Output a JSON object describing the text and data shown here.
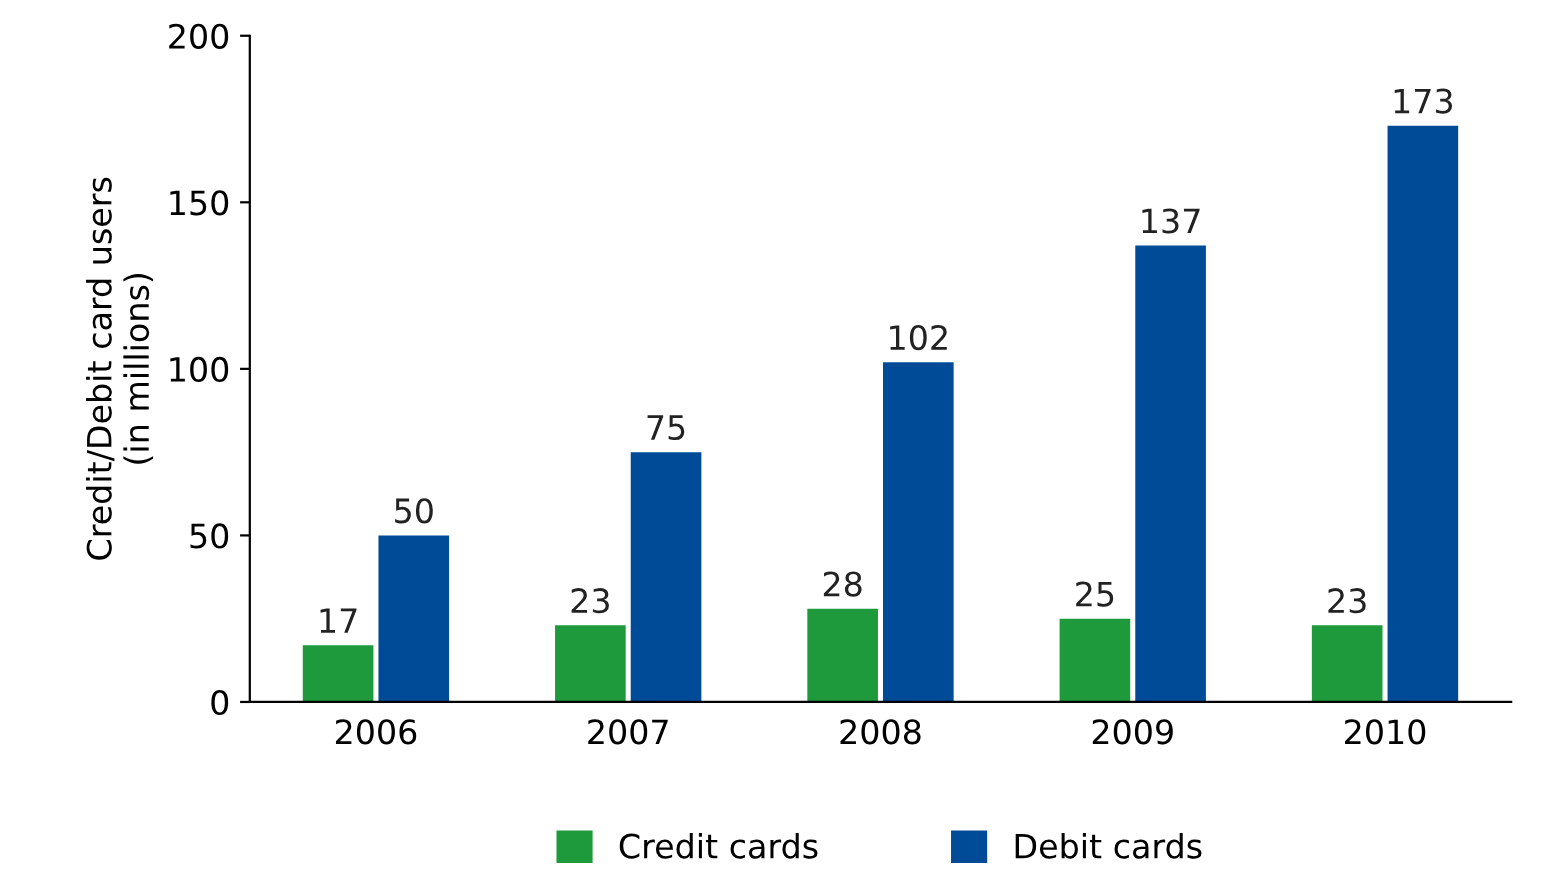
{
  "chart_data": {
    "type": "bar",
    "ylabel": "Credit/Debit card users\n(in millions)",
    "categories": [
      "2006",
      "2007",
      "2008",
      "2009",
      "2010"
    ],
    "series": [
      {
        "name": "Credit cards",
        "color": "#1e9a3c",
        "values": [
          17,
          23,
          28,
          25,
          23
        ]
      },
      {
        "name": "Debit cards",
        "color": "#004b98",
        "values": [
          50,
          75,
          102,
          137,
          173
        ]
      }
    ],
    "ylim": [
      0,
      200
    ],
    "yticks": [
      0,
      50,
      100,
      150,
      200
    ],
    "data_labels": true,
    "grid": false,
    "legend": "bottom"
  }
}
